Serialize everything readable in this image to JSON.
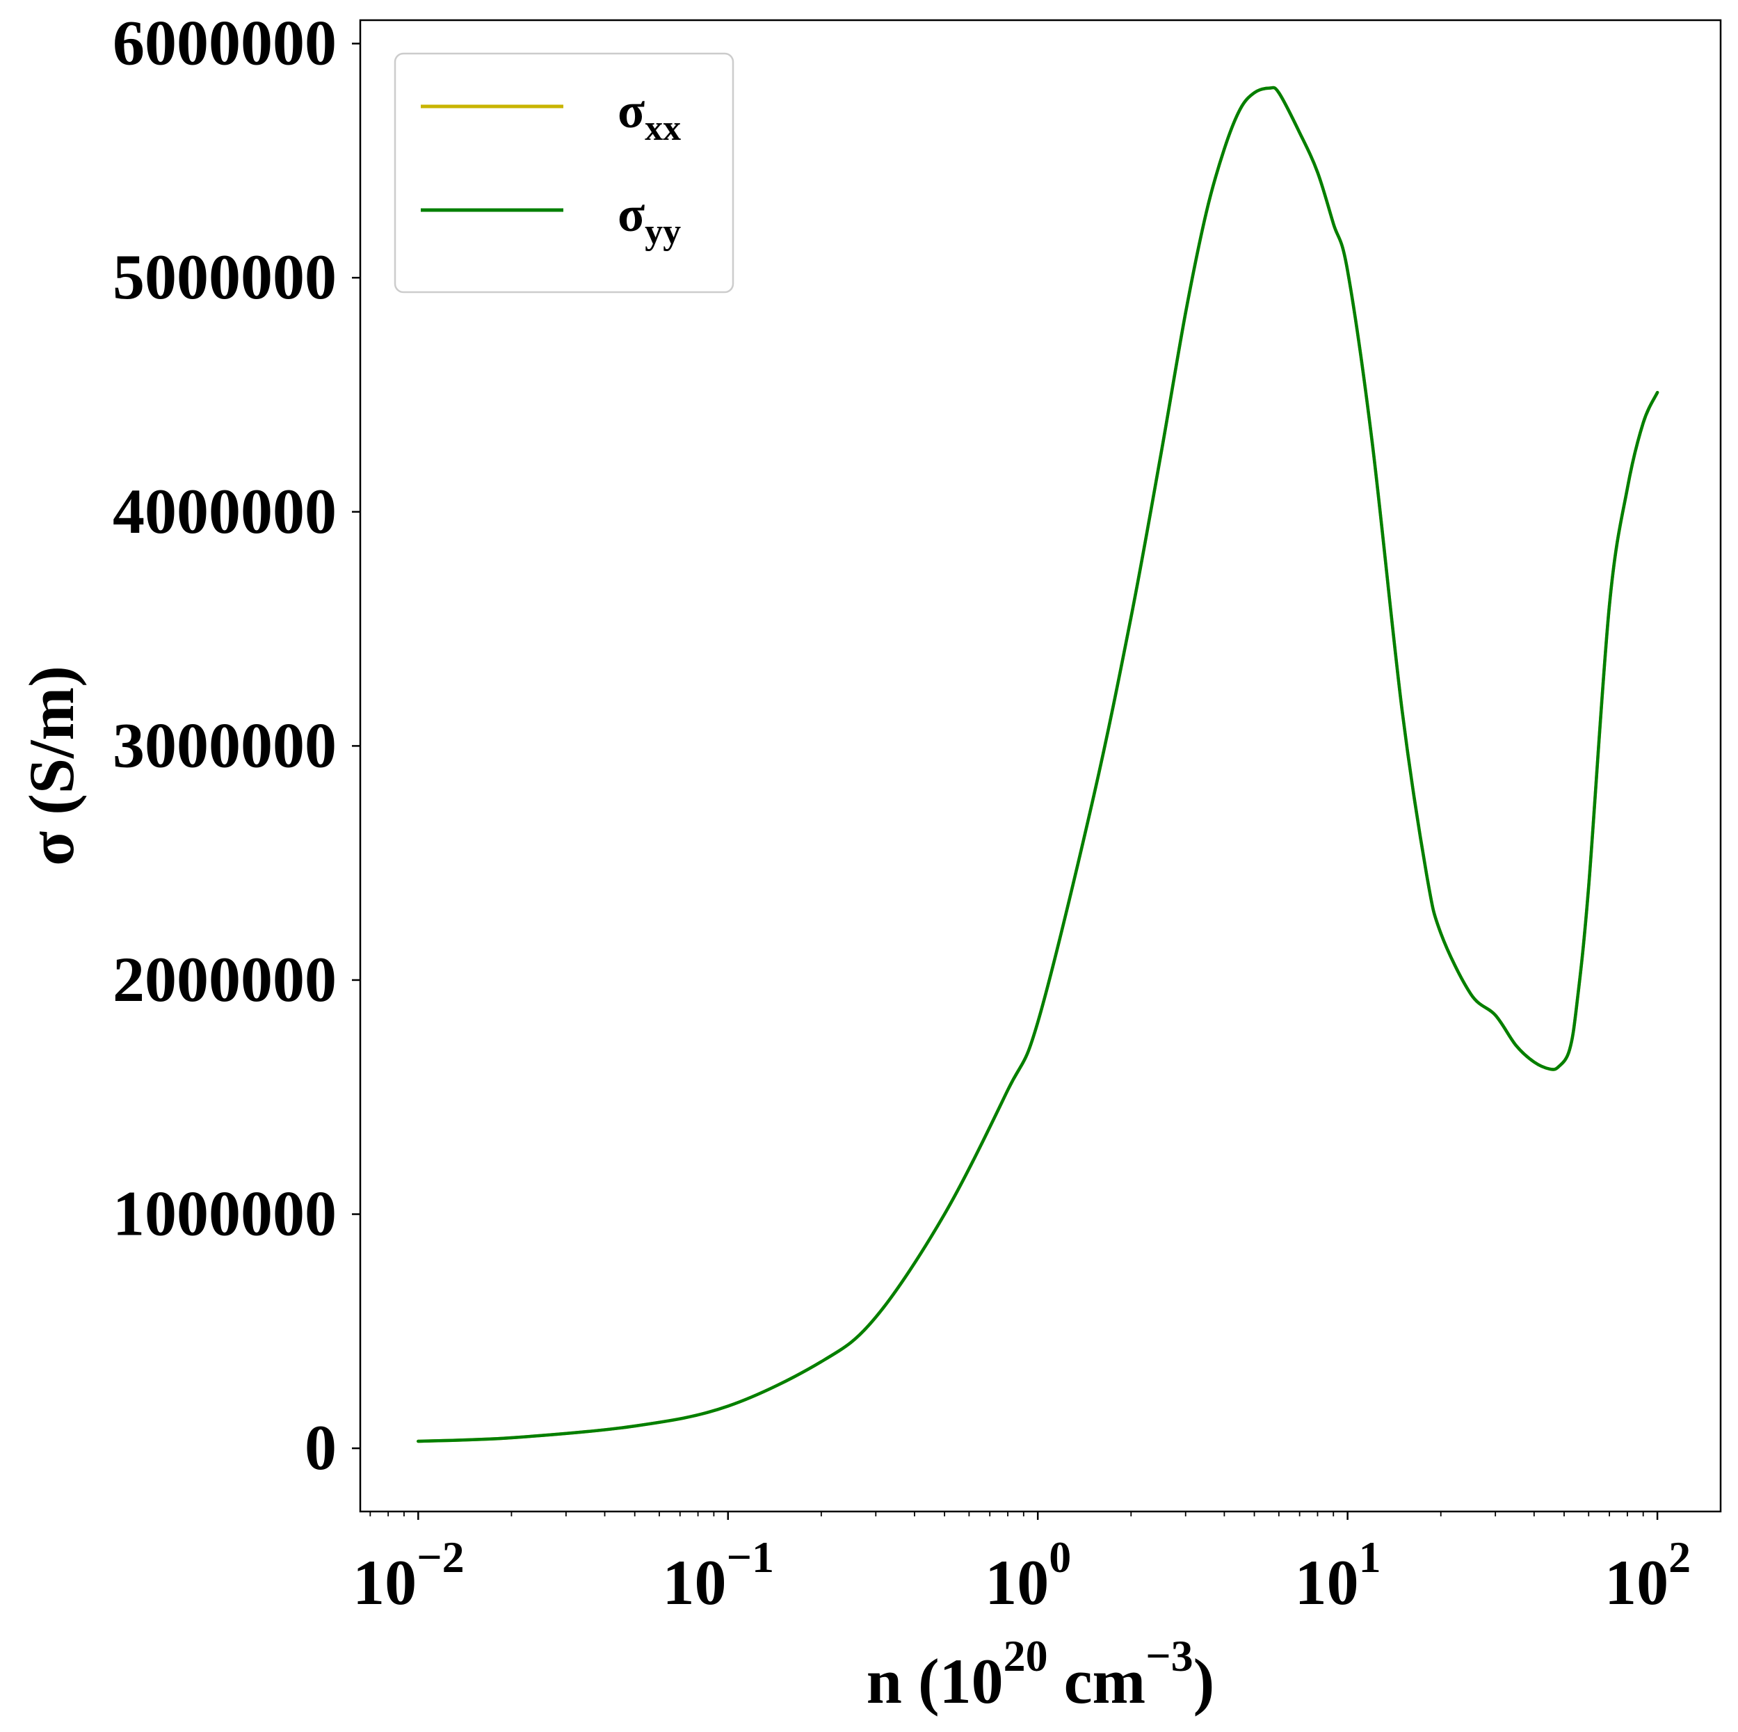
{
  "chart_data": {
    "type": "line",
    "xlabel": {
      "base": "n (10",
      "sup1": "20",
      "mid": " cm",
      "sup2": "−3",
      "end": ")"
    },
    "ylabel": "σ (S/m)",
    "x_scale": "log",
    "xlim": [
      0.0065,
      160
    ],
    "ylim": [
      -270000,
      6100000
    ],
    "x_ticks": [
      {
        "value": 0.01,
        "base": "10",
        "exp": "−2"
      },
      {
        "value": 0.1,
        "base": "10",
        "exp": "−1"
      },
      {
        "value": 1,
        "base": "10",
        "exp": "0"
      },
      {
        "value": 10,
        "base": "10",
        "exp": "1"
      },
      {
        "value": 100,
        "base": "10",
        "exp": "2"
      }
    ],
    "y_ticks": [
      {
        "value": 0,
        "label": "0"
      },
      {
        "value": 1000000,
        "label": "1000000"
      },
      {
        "value": 2000000,
        "label": "2000000"
      },
      {
        "value": 3000000,
        "label": "3000000"
      },
      {
        "value": 4000000,
        "label": "4000000"
      },
      {
        "value": 5000000,
        "label": "5000000"
      },
      {
        "value": 6000000,
        "label": "6000000"
      }
    ],
    "grid": false,
    "legend": {
      "placement": "top-left"
    },
    "series": [
      {
        "name": "σxx",
        "label_main": "σ",
        "label_sub": "xx",
        "color": "#c8b400",
        "x": [
          0.01,
          0.02,
          0.05,
          0.1,
          0.2,
          0.3,
          0.5,
          0.8,
          1,
          1.5,
          2,
          2.5,
          3,
          3.5,
          4,
          4.5,
          5,
          5.6,
          6,
          7,
          8,
          9,
          10,
          12,
          15,
          18,
          20,
          25,
          30,
          35,
          40,
          45,
          48,
          52,
          55,
          60,
          70,
          80,
          90,
          100
        ],
        "y": [
          30000,
          45000,
          95000,
          180000,
          370000,
          560000,
          1000000,
          1530000,
          1820000,
          2760000,
          3550000,
          4250000,
          4850000,
          5280000,
          5550000,
          5720000,
          5790000,
          5810000,
          5790000,
          5620000,
          5450000,
          5230000,
          5030000,
          4300000,
          3150000,
          2450000,
          2200000,
          1940000,
          1850000,
          1720000,
          1650000,
          1620000,
          1630000,
          1700000,
          1900000,
          2400000,
          3600000,
          4100000,
          4380000,
          4510000
        ]
      },
      {
        "name": "σyy",
        "label_main": "σ",
        "label_sub": "yy",
        "color": "#007f00",
        "x": [
          0.01,
          0.02,
          0.05,
          0.1,
          0.2,
          0.3,
          0.5,
          0.8,
          1,
          1.5,
          2,
          2.5,
          3,
          3.5,
          4,
          4.5,
          5,
          5.6,
          6,
          7,
          8,
          9,
          10,
          12,
          15,
          18,
          20,
          25,
          30,
          35,
          40,
          45,
          48,
          52,
          55,
          60,
          70,
          80,
          90,
          100
        ],
        "y": [
          30000,
          45000,
          95000,
          180000,
          370000,
          560000,
          1000000,
          1530000,
          1820000,
          2760000,
          3550000,
          4250000,
          4850000,
          5280000,
          5550000,
          5720000,
          5790000,
          5810000,
          5790000,
          5620000,
          5450000,
          5230000,
          5030000,
          4300000,
          3150000,
          2450000,
          2200000,
          1940000,
          1850000,
          1720000,
          1650000,
          1620000,
          1630000,
          1700000,
          1900000,
          2400000,
          3600000,
          4100000,
          4380000,
          4510000
        ]
      }
    ]
  }
}
